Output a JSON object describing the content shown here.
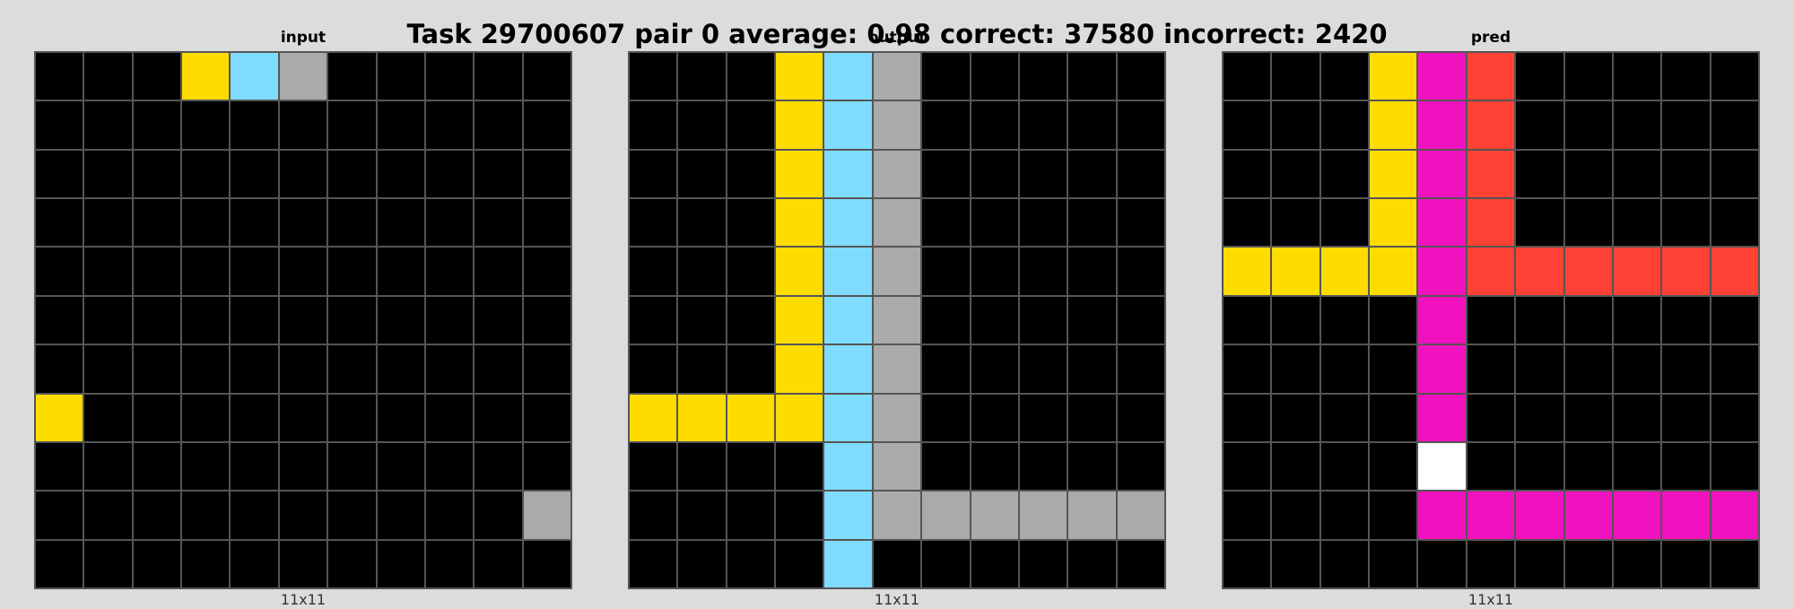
{
  "title": "Task 29700607 pair 0 average: 0.98 correct: 37580 incorrect: 2420",
  "palette": {
    "0": "#000000",
    "1": "#0074d9",
    "2": "#ff4136",
    "3": "#2ecc40",
    "4": "#ffdc00",
    "5": "#aaaaaa",
    "6": "#f012be",
    "7": "#ff851b",
    "8": "#7fdbff",
    "9": "#870c25",
    "10": "#ffffff"
  },
  "panels": [
    {
      "name": "input",
      "label": "input",
      "size_label": "11x11",
      "grid": [
        [
          0,
          0,
          0,
          4,
          8,
          5,
          0,
          0,
          0,
          0,
          0
        ],
        [
          0,
          0,
          0,
          0,
          0,
          0,
          0,
          0,
          0,
          0,
          0
        ],
        [
          0,
          0,
          0,
          0,
          0,
          0,
          0,
          0,
          0,
          0,
          0
        ],
        [
          0,
          0,
          0,
          0,
          0,
          0,
          0,
          0,
          0,
          0,
          0
        ],
        [
          0,
          0,
          0,
          0,
          0,
          0,
          0,
          0,
          0,
          0,
          0
        ],
        [
          0,
          0,
          0,
          0,
          0,
          0,
          0,
          0,
          0,
          0,
          0
        ],
        [
          0,
          0,
          0,
          0,
          0,
          0,
          0,
          0,
          0,
          0,
          0
        ],
        [
          4,
          0,
          0,
          0,
          0,
          0,
          0,
          0,
          0,
          0,
          0
        ],
        [
          0,
          0,
          0,
          0,
          0,
          0,
          0,
          0,
          0,
          0,
          0
        ],
        [
          0,
          0,
          0,
          0,
          0,
          0,
          0,
          0,
          0,
          0,
          5
        ],
        [
          0,
          0,
          0,
          0,
          0,
          0,
          0,
          0,
          0,
          0,
          0
        ]
      ]
    },
    {
      "name": "output",
      "label": "output",
      "size_label": "11x11",
      "grid": [
        [
          0,
          0,
          0,
          4,
          8,
          5,
          0,
          0,
          0,
          0,
          0
        ],
        [
          0,
          0,
          0,
          4,
          8,
          5,
          0,
          0,
          0,
          0,
          0
        ],
        [
          0,
          0,
          0,
          4,
          8,
          5,
          0,
          0,
          0,
          0,
          0
        ],
        [
          0,
          0,
          0,
          4,
          8,
          5,
          0,
          0,
          0,
          0,
          0
        ],
        [
          0,
          0,
          0,
          4,
          8,
          5,
          0,
          0,
          0,
          0,
          0
        ],
        [
          0,
          0,
          0,
          4,
          8,
          5,
          0,
          0,
          0,
          0,
          0
        ],
        [
          0,
          0,
          0,
          4,
          8,
          5,
          0,
          0,
          0,
          0,
          0
        ],
        [
          4,
          4,
          4,
          4,
          8,
          5,
          0,
          0,
          0,
          0,
          0
        ],
        [
          0,
          0,
          0,
          0,
          8,
          5,
          0,
          0,
          0,
          0,
          0
        ],
        [
          0,
          0,
          0,
          0,
          8,
          5,
          5,
          5,
          5,
          5,
          5
        ],
        [
          0,
          0,
          0,
          0,
          8,
          0,
          0,
          0,
          0,
          0,
          0
        ]
      ]
    },
    {
      "name": "pred",
      "label": "pred",
      "size_label": "11x11",
      "grid": [
        [
          0,
          0,
          0,
          4,
          6,
          2,
          0,
          0,
          0,
          0,
          0
        ],
        [
          0,
          0,
          0,
          4,
          6,
          2,
          0,
          0,
          0,
          0,
          0
        ],
        [
          0,
          0,
          0,
          4,
          6,
          2,
          0,
          0,
          0,
          0,
          0
        ],
        [
          0,
          0,
          0,
          4,
          6,
          2,
          0,
          0,
          0,
          0,
          0
        ],
        [
          4,
          4,
          4,
          4,
          6,
          2,
          2,
          2,
          2,
          2,
          2
        ],
        [
          0,
          0,
          0,
          0,
          6,
          0,
          0,
          0,
          0,
          0,
          0
        ],
        [
          0,
          0,
          0,
          0,
          6,
          0,
          0,
          0,
          0,
          0,
          0
        ],
        [
          0,
          0,
          0,
          0,
          6,
          0,
          0,
          0,
          0,
          0,
          0
        ],
        [
          0,
          0,
          0,
          0,
          10,
          0,
          0,
          0,
          0,
          0,
          0
        ],
        [
          0,
          0,
          0,
          0,
          6,
          6,
          6,
          6,
          6,
          6,
          6
        ],
        [
          0,
          0,
          0,
          0,
          0,
          0,
          0,
          0,
          0,
          0,
          0
        ]
      ]
    }
  ]
}
